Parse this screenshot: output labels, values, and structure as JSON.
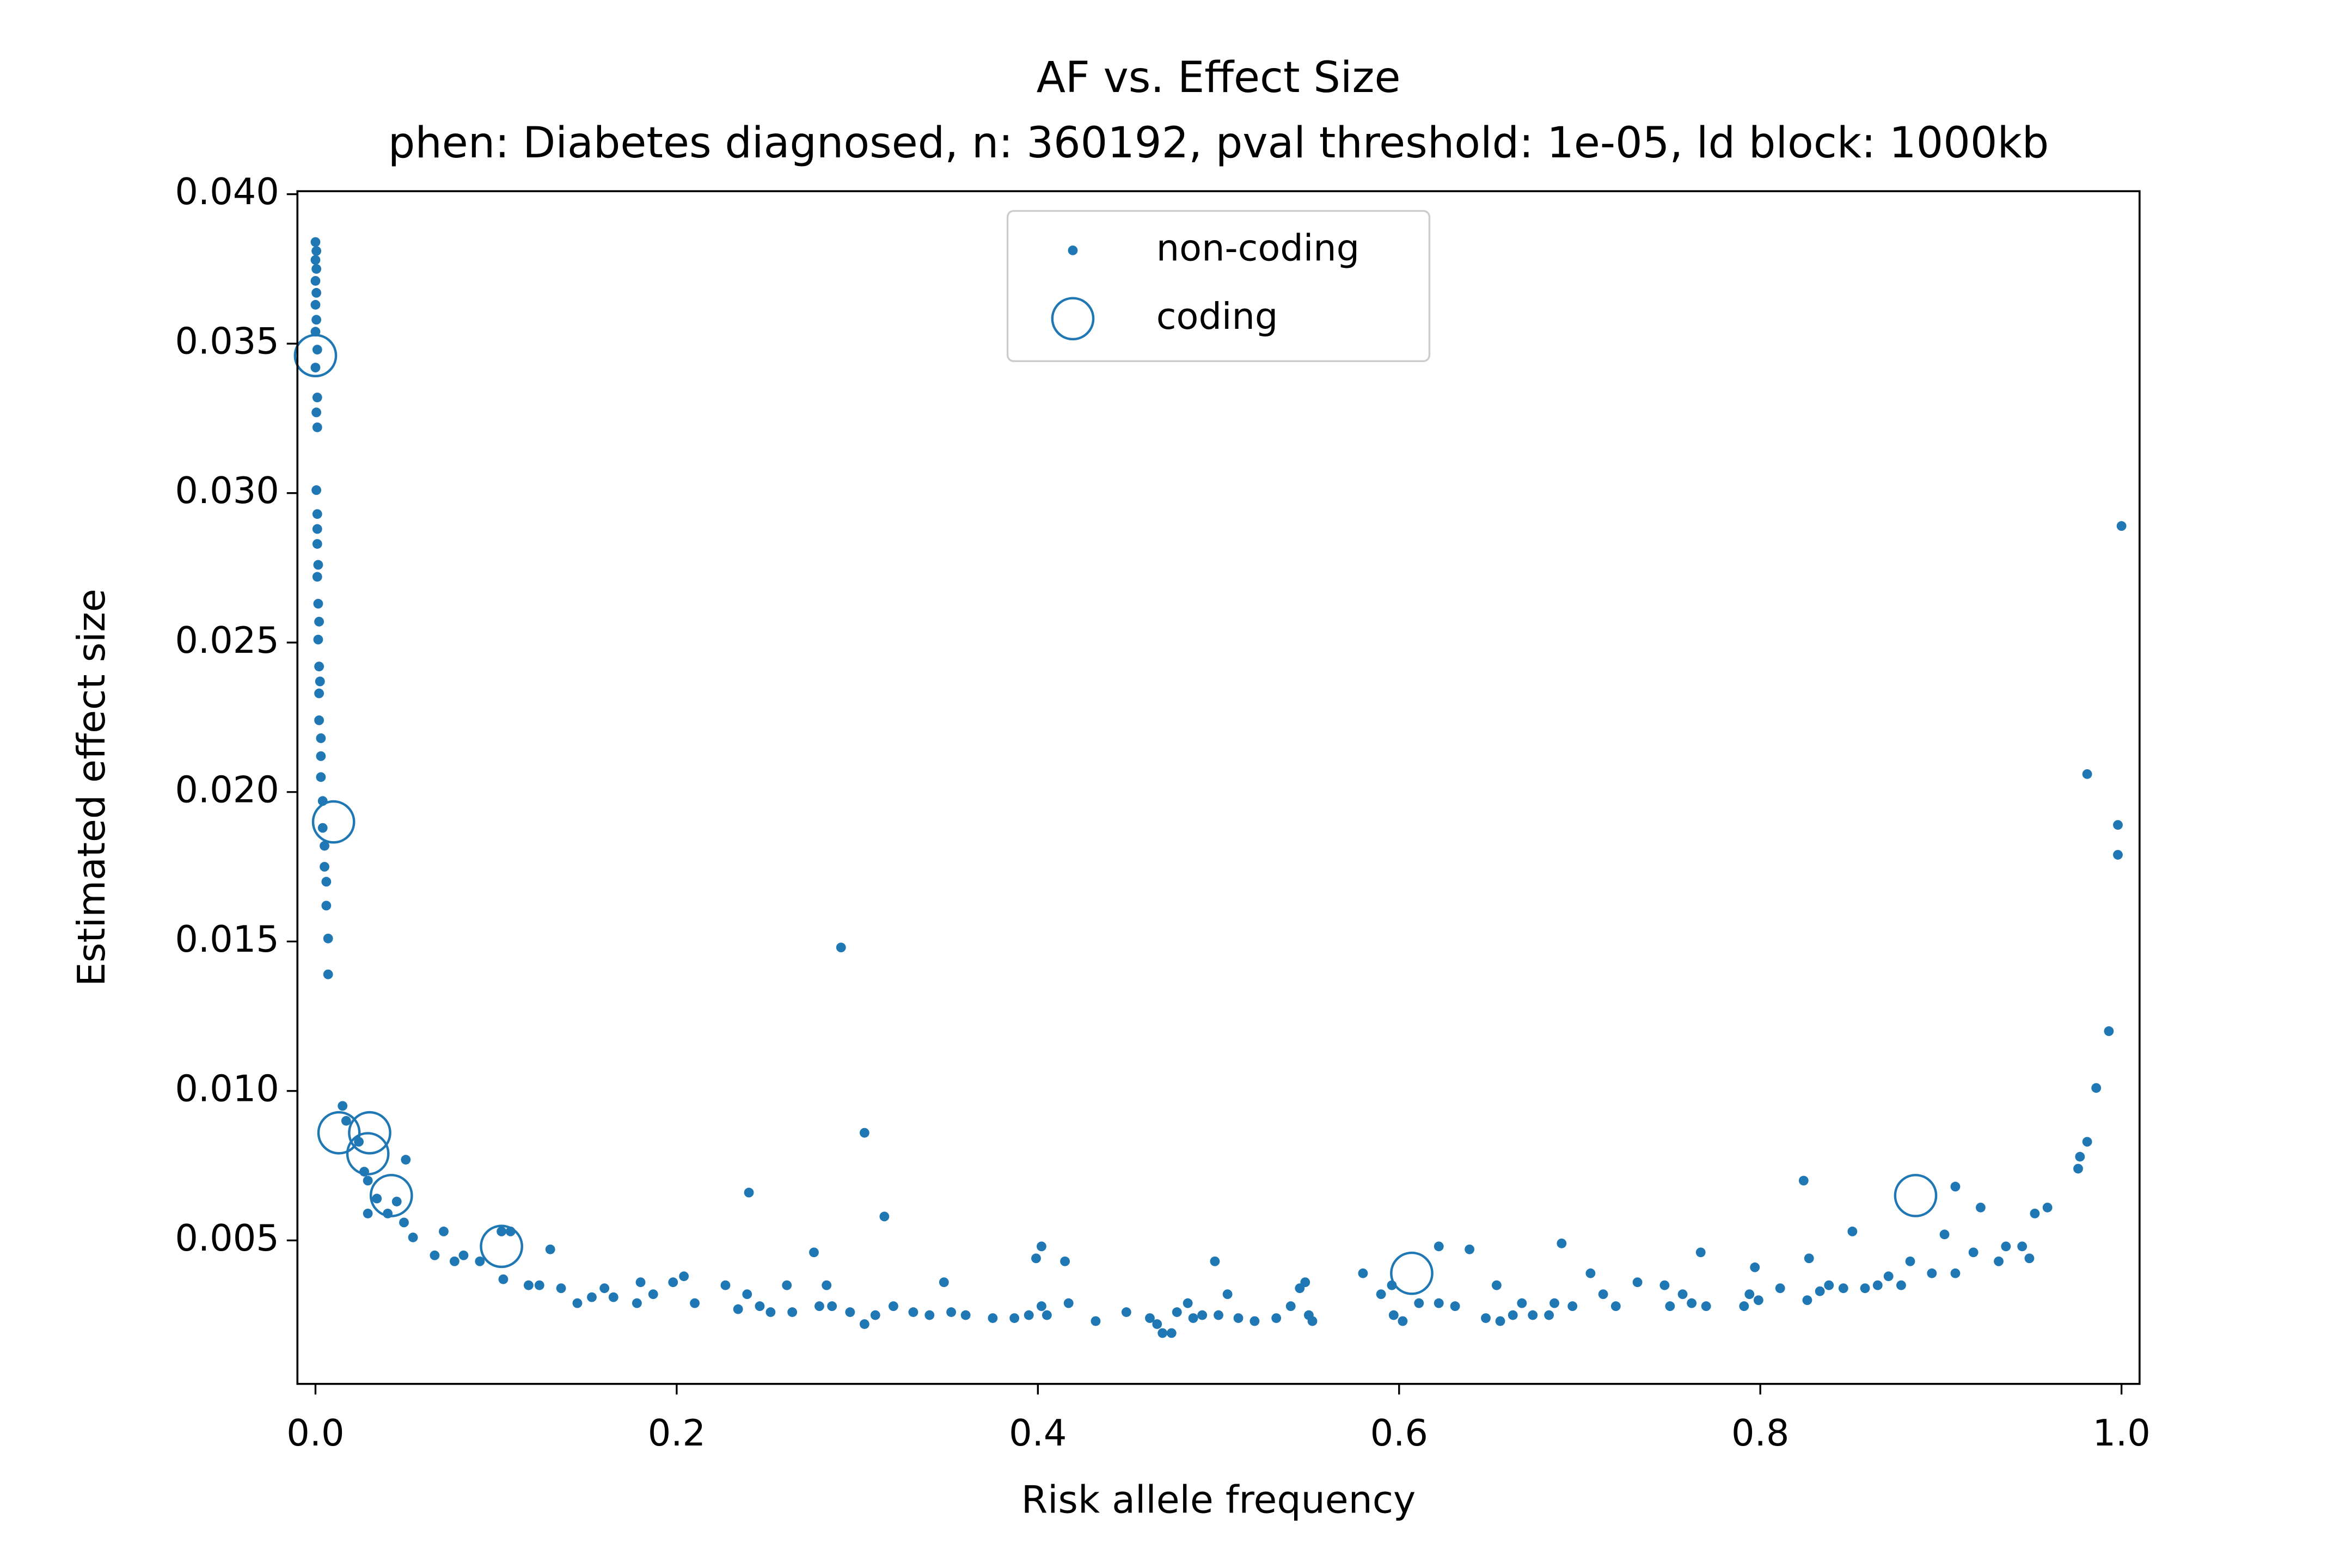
{
  "chart_data": {
    "type": "scatter",
    "title": "AF vs. Effect Size",
    "subtitle": "phen: Diabetes diagnosed, n: 360192, pval threshold: 1e-05, ld block: 1000kb",
    "x_label": "Risk allele frequency",
    "y_label": "Estimated effect size",
    "xlim": [
      -0.01,
      1.01
    ],
    "ylim": [
      0.0002,
      0.0401
    ],
    "xticks": [
      {
        "value": 0,
        "label": "0.0"
      },
      0.2,
      0.4,
      0.6,
      0.8,
      {
        "value": 1,
        "label": "1.0"
      }
    ],
    "yticks": [
      0.005,
      {
        "value": 0.01,
        "label": "0.010"
      },
      0.015,
      {
        "value": 0.02,
        "label": "0.020"
      },
      0.025,
      {
        "value": 0.03,
        "label": "0.030"
      },
      0.035,
      {
        "value": 0.04,
        "label": "0.040"
      }
    ],
    "legend": "upper center",
    "series": [
      {
        "name": "non-coding",
        "color": "#1f77b4",
        "marker": "dot",
        "x": [
          0.0,
          0.0005,
          0.0,
          0.0005,
          0.0,
          0.0005,
          0.0,
          0.0005,
          0.0,
          0.001,
          0.0,
          0.001,
          0.0005,
          0.001,
          0.0005,
          0.001,
          0.001,
          0.001,
          0.0015,
          0.001,
          0.0015,
          0.002,
          0.0015,
          0.002,
          0.0025,
          0.002,
          0.002,
          0.003,
          0.003,
          0.003,
          0.004,
          0.004,
          0.005,
          0.005,
          0.006,
          0.006,
          0.007,
          0.007,
          0.015,
          0.017,
          0.024,
          0.027,
          0.029,
          0.034,
          0.029,
          0.04,
          0.045,
          0.05,
          0.049,
          0.054,
          0.066,
          0.071,
          0.077,
          0.082,
          0.091,
          0.103,
          0.108,
          0.104,
          0.118,
          0.13,
          0.124,
          0.136,
          0.145,
          0.153,
          0.16,
          0.165,
          0.178,
          0.18,
          0.187,
          0.198,
          0.204,
          0.21,
          0.227,
          0.234,
          0.239,
          0.24,
          0.246,
          0.252,
          0.261,
          0.264,
          0.276,
          0.279,
          0.283,
          0.286,
          0.291,
          0.296,
          0.304,
          0.304,
          0.31,
          0.315,
          0.32,
          0.331,
          0.34,
          0.348,
          0.352,
          0.36,
          0.375,
          0.387,
          0.395,
          0.399,
          0.402,
          0.402,
          0.405,
          0.415,
          0.417,
          0.432,
          0.449,
          0.462,
          0.466,
          0.469,
          0.474,
          0.477,
          0.483,
          0.486,
          0.491,
          0.498,
          0.5,
          0.505,
          0.511,
          0.52,
          0.532,
          0.54,
          0.545,
          0.548,
          0.55,
          0.552,
          0.58,
          0.59,
          0.596,
          0.597,
          0.602,
          0.611,
          0.622,
          0.622,
          0.631,
          0.639,
          0.648,
          0.654,
          0.656,
          0.663,
          0.668,
          0.674,
          0.683,
          0.686,
          0.69,
          0.696,
          0.706,
          0.713,
          0.72,
          0.732,
          0.747,
          0.75,
          0.757,
          0.762,
          0.767,
          0.77,
          0.791,
          0.794,
          0.797,
          0.799,
          0.811,
          0.824,
          0.826,
          0.827,
          0.833,
          0.838,
          0.846,
          0.851,
          0.858,
          0.865,
          0.871,
          0.878,
          0.883,
          0.895,
          0.902,
          0.908,
          0.908,
          0.918,
          0.922,
          0.932,
          0.936,
          0.945,
          0.949,
          0.952,
          0.959,
          0.976,
          0.977,
          0.981,
          0.986,
          0.981,
          0.993,
          0.998,
          0.998,
          1.0
        ],
        "y": [
          0.0384,
          0.0381,
          0.0378,
          0.0375,
          0.0371,
          0.0367,
          0.0363,
          0.0358,
          0.0354,
          0.0348,
          0.0342,
          0.0332,
          0.0327,
          0.0322,
          0.0301,
          0.0293,
          0.0288,
          0.0283,
          0.0276,
          0.0272,
          0.0263,
          0.0257,
          0.0251,
          0.0242,
          0.0237,
          0.0233,
          0.0224,
          0.0218,
          0.0212,
          0.0205,
          0.0197,
          0.0188,
          0.0182,
          0.0175,
          0.017,
          0.0162,
          0.0151,
          0.0139,
          0.0095,
          0.009,
          0.0083,
          0.0073,
          0.007,
          0.0064,
          0.0059,
          0.0059,
          0.0063,
          0.0077,
          0.0056,
          0.0051,
          0.0045,
          0.0053,
          0.0043,
          0.0045,
          0.0043,
          0.0053,
          0.0053,
          0.0037,
          0.0035,
          0.0047,
          0.0035,
          0.0034,
          0.0029,
          0.0031,
          0.0034,
          0.0031,
          0.0029,
          0.0036,
          0.0032,
          0.0036,
          0.0038,
          0.0029,
          0.0035,
          0.0027,
          0.0032,
          0.0066,
          0.0028,
          0.0026,
          0.0035,
          0.0026,
          0.0046,
          0.0028,
          0.0035,
          0.0028,
          0.0148,
          0.0026,
          0.0022,
          0.0086,
          0.0025,
          0.0058,
          0.0028,
          0.0026,
          0.0025,
          0.0036,
          0.0026,
          0.0025,
          0.0024,
          0.0024,
          0.0025,
          0.0044,
          0.0048,
          0.0028,
          0.0025,
          0.0043,
          0.0029,
          0.0023,
          0.0026,
          0.0024,
          0.0022,
          0.0019,
          0.0019,
          0.0026,
          0.0029,
          0.0024,
          0.0025,
          0.0043,
          0.0025,
          0.0032,
          0.0024,
          0.0023,
          0.0024,
          0.0028,
          0.0034,
          0.0036,
          0.0025,
          0.0023,
          0.0039,
          0.0032,
          0.0035,
          0.0025,
          0.0023,
          0.0029,
          0.0048,
          0.0029,
          0.0028,
          0.0047,
          0.0024,
          0.0035,
          0.0023,
          0.0025,
          0.0029,
          0.0025,
          0.0025,
          0.0029,
          0.0049,
          0.0028,
          0.0039,
          0.0032,
          0.0028,
          0.0036,
          0.0035,
          0.0028,
          0.0032,
          0.0029,
          0.0046,
          0.0028,
          0.0028,
          0.0032,
          0.0041,
          0.003,
          0.0034,
          0.007,
          0.003,
          0.0044,
          0.0033,
          0.0035,
          0.0034,
          0.0053,
          0.0034,
          0.0035,
          0.0038,
          0.0035,
          0.0043,
          0.0039,
          0.0052,
          0.0068,
          0.0039,
          0.0046,
          0.0061,
          0.0043,
          0.0048,
          0.0048,
          0.0044,
          0.0059,
          0.0061,
          0.0074,
          0.0078,
          0.0083,
          0.0101,
          0.0206,
          0.012,
          0.0189,
          0.0179,
          0.0289
        ]
      },
      {
        "name": "coding",
        "color": "#1f77b4",
        "marker": "ring",
        "x": [
          0.0,
          0.01,
          0.013,
          0.03,
          0.029,
          0.042,
          0.103,
          0.607,
          0.886
        ],
        "y": [
          0.0346,
          0.019,
          0.0086,
          0.0086,
          0.0079,
          0.0065,
          0.0048,
          0.0039,
          0.0065
        ]
      }
    ]
  }
}
